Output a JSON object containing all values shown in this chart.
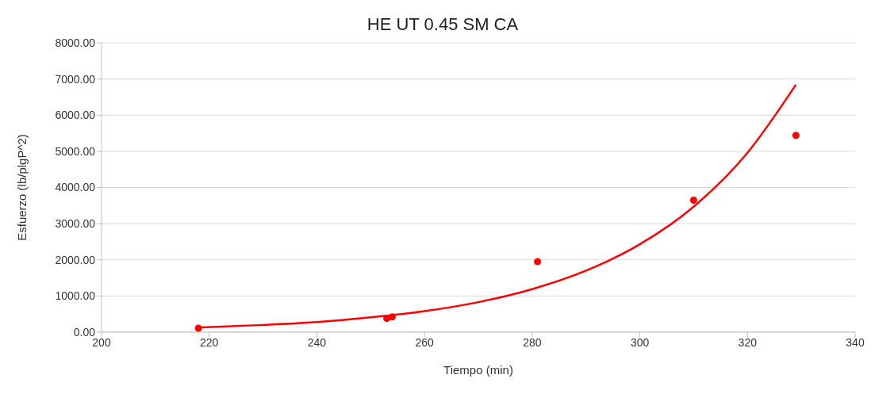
{
  "chart_data": {
    "type": "scatter",
    "title": "HE UT 0.45 SM CA",
    "xlabel": "Tiempo (min)",
    "ylabel": "Esfuerzo (lb/plgP^2)",
    "series": [
      {
        "color": "#ff0000",
        "marker": "circle",
        "x": [
          218,
          253,
          254,
          281,
          310,
          329
        ],
        "values": [
          110,
          380,
          420,
          1950,
          3650,
          5440
        ]
      },
      {
        "type": "line",
        "color": "#ff0000",
        "marker": "none",
        "line_style": "solid",
        "x": [
          218,
          230,
          240,
          250,
          260,
          270,
          280,
          290,
          300,
          310,
          320,
          329
        ],
        "values": [
          130,
          200,
          280,
          410,
          580,
          830,
          1190,
          1700,
          2430,
          3470,
          4960,
          6840
        ]
      }
    ],
    "xlim": [
      200,
      340
    ],
    "xticks": [
      200,
      220,
      240,
      260,
      280,
      300,
      320,
      340
    ],
    "ylim": [
      0,
      8000
    ],
    "yticks": [
      {
        "value": 0,
        "label": "0.00"
      },
      {
        "value": 1000,
        "label": "1000.00"
      },
      {
        "value": 2000,
        "label": "2000.00"
      },
      {
        "value": 3000,
        "label": "3000.00"
      },
      {
        "value": 4000,
        "label": "4000.00"
      },
      {
        "value": 5000,
        "label": "5000.00"
      },
      {
        "value": 6000,
        "label": "6000.00"
      },
      {
        "value": 7000,
        "label": "7000.00"
      },
      {
        "value": 8000,
        "label": "8000.00"
      }
    ],
    "grid": "y"
  }
}
